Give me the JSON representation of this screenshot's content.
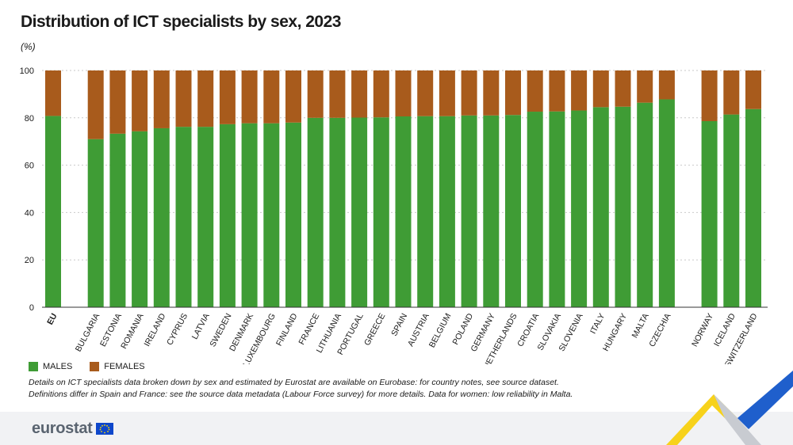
{
  "title": "Distribution of ICT specialists by sex, 2023",
  "unit": "(%)",
  "colors": {
    "males": "#3f9c35",
    "females": "#a85b1c",
    "grid": "#c9c9c9",
    "axis": "#333333"
  },
  "legend": {
    "males": "MALES",
    "females": "FEMALES"
  },
  "notes": [
    "Details on ICT specialists data broken down by sex and estimated by Eurostat are available on Eurobase: for country notes, see source dataset.",
    "Definitions differ in Spain and France: see the source data metadata (Labour Force survey) for more details. Data for women: low reliability in Malta."
  ],
  "logo": {
    "text": "eurostat",
    "icon": "eu-flag-icon"
  },
  "chart_data": {
    "type": "bar",
    "stacked": true,
    "categories": [
      "EU",
      "BULGARIA",
      "ESTONIA",
      "ROMANIA",
      "IRELAND",
      "CYPRUS",
      "LATVIA",
      "SWEDEN",
      "DENMARK",
      "LUXEMBOURG",
      "FINLAND",
      "FRANCE",
      "LITHUANIA",
      "PORTUGAL",
      "GREECE",
      "SPAIN",
      "AUSTRIA",
      "BELGIUM",
      "POLAND",
      "GERMANY",
      "NETHERLANDS",
      "CROATIA",
      "SLOVAKIA",
      "SLOVENIA",
      "ITALY",
      "HUNGARY",
      "MALTA",
      "CZECHIA",
      "NORWAY",
      "ICELAND",
      "SWITZERLAND"
    ],
    "groups": [
      [
        0
      ],
      [
        1,
        2,
        3,
        4,
        5,
        6,
        7,
        8,
        9,
        10,
        11,
        12,
        13,
        14,
        15,
        16,
        17,
        18,
        19,
        20,
        21,
        22,
        23,
        24,
        25,
        26,
        27
      ],
      [
        28,
        29,
        30
      ]
    ],
    "series": [
      {
        "name": "MALES",
        "values": [
          80.8,
          71.0,
          73.3,
          74.3,
          75.6,
          76.2,
          76.2,
          77.3,
          77.7,
          77.7,
          78.0,
          80.0,
          80.0,
          80.1,
          80.2,
          80.6,
          80.7,
          80.7,
          81.0,
          81.0,
          81.2,
          82.6,
          82.7,
          83.1,
          84.5,
          84.7,
          86.4,
          87.8,
          78.6,
          81.4,
          83.7
        ]
      },
      {
        "name": "FEMALES",
        "values": [
          19.2,
          29.0,
          26.7,
          25.7,
          24.4,
          23.8,
          23.8,
          22.7,
          22.3,
          22.3,
          22.0,
          20.0,
          20.0,
          19.9,
          19.8,
          19.4,
          19.3,
          19.3,
          19.0,
          19.0,
          18.8,
          17.4,
          17.3,
          16.9,
          15.5,
          15.3,
          13.6,
          12.2,
          21.4,
          18.6,
          16.3
        ]
      }
    ],
    "yticks": [
      0,
      20,
      40,
      60,
      80,
      100
    ],
    "ylim": [
      0,
      100
    ],
    "grid": true,
    "legend_position": "bottom-left"
  }
}
